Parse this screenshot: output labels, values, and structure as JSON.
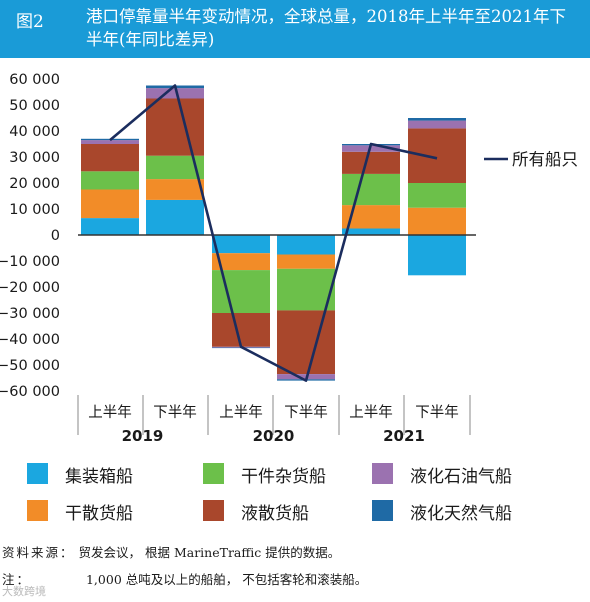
{
  "figure": {
    "number": "图2",
    "title": "港口停靠量半年变动情况，全球总量，2018年上半年至2021年下半年(年同比差异)"
  },
  "colors": {
    "container": "#1ba7e0",
    "dry_bulk": "#f28c28",
    "general_cargo": "#6cc04a",
    "wet_bulk": "#a9472c",
    "lpg": "#9b72b0",
    "lng": "#1f6aa5",
    "total_line": "#1b2d5e",
    "title_bg": "#1a9bd7"
  },
  "chart_data": {
    "type": "bar",
    "stacked": true,
    "categories": [
      "上半年 2019",
      "下半年 2019",
      "上半年 2020",
      "下半年 2020",
      "上半年 2021",
      "下半年 2021"
    ],
    "x_tick_labels": [
      "上半年",
      "下半年",
      "上半年",
      "下半年",
      "上半年",
      "下半年"
    ],
    "x_group_labels": [
      {
        "label": "2019",
        "span": [
          0,
          1
        ]
      },
      {
        "label": "2020",
        "span": [
          2,
          3
        ]
      },
      {
        "label": "2021",
        "span": [
          4,
          5
        ]
      }
    ],
    "ylim": [
      -60000,
      60000
    ],
    "yticks": [
      60000,
      50000,
      40000,
      30000,
      20000,
      10000,
      0,
      -10000,
      -20000,
      -30000,
      -40000,
      -50000,
      -60000
    ],
    "ytick_labels": [
      "60 000",
      "50 000",
      "40 000",
      "30 000",
      "20 000",
      "10 000",
      "0",
      "−10 000",
      "−20 000",
      "−30 000",
      "−40 000",
      "−50 000",
      "−60 000"
    ],
    "grid": false,
    "legend_position": "bottom",
    "series": [
      {
        "name": "集装箱船",
        "key": "container",
        "values": [
          6500,
          13500,
          -7000,
          -7500,
          2500,
          -15500
        ]
      },
      {
        "name": "干散货船",
        "key": "dry_bulk",
        "values": [
          11000,
          8000,
          -6500,
          -5500,
          9000,
          10500
        ]
      },
      {
        "name": "干件杂货船",
        "key": "general_cargo",
        "values": [
          7000,
          9000,
          -16500,
          -16000,
          12000,
          9500
        ]
      },
      {
        "name": "液散货船",
        "key": "wet_bulk",
        "values": [
          10500,
          22000,
          -13000,
          -24500,
          8500,
          21000
        ]
      },
      {
        "name": "液化石油气船",
        "key": "lpg",
        "values": [
          1500,
          4000,
          -300,
          -2000,
          2500,
          3000
        ]
      },
      {
        "name": "液化天然气船",
        "key": "lng",
        "values": [
          500,
          1000,
          -200,
          -500,
          500,
          1000
        ]
      }
    ],
    "line": {
      "name": "所有船只",
      "values": [
        36500,
        57500,
        -43000,
        -56000,
        35000,
        29500
      ]
    }
  },
  "legend": [
    {
      "label": "集装箱船",
      "key": "container"
    },
    {
      "label": "干件杂货船",
      "key": "general_cargo"
    },
    {
      "label": "液化石油气船",
      "key": "lpg"
    },
    {
      "label": "干散货船",
      "key": "dry_bulk"
    },
    {
      "label": "液散货船",
      "key": "wet_bulk"
    },
    {
      "label": "液化天然气船",
      "key": "lng"
    }
  ],
  "notes": {
    "source_prefix": "资料来源：",
    "source_text": "贸发会议， 根据 MarineTraffic 提供的数据。",
    "note_prefix": "注：",
    "note_text": "1,000 总吨及以上的船舶， 不包括客轮和滚装船。",
    "watermark": "大数跨境"
  }
}
